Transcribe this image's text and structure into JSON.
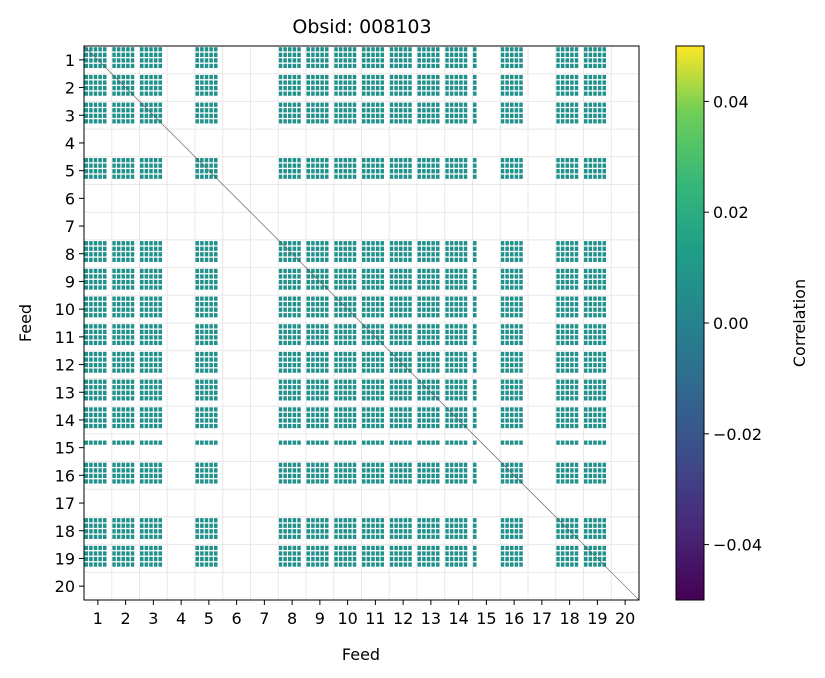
{
  "chart_data": {
    "type": "heatmap",
    "title": "Obsid: 008103",
    "xlabel": "Feed",
    "ylabel": "Feed",
    "categories": [
      "1",
      "2",
      "3",
      "4",
      "5",
      "6",
      "7",
      "8",
      "9",
      "10",
      "11",
      "12",
      "13",
      "14",
      "15",
      "16",
      "17",
      "18",
      "19",
      "20"
    ],
    "colorbar": {
      "label": "Correlation",
      "range": [
        -0.05,
        0.05
      ],
      "ticks": [
        -0.04,
        -0.02,
        0.0,
        0.02,
        0.04
      ],
      "tick_labels": [
        "−0.04",
        "−0.02",
        "0.00",
        "0.02",
        "0.04"
      ],
      "colormap": "viridis"
    },
    "cell_value": 0.0,
    "cell_color": "#21918c",
    "grid": true,
    "active_feeds": [
      1,
      2,
      3,
      5,
      8,
      9,
      10,
      11,
      12,
      13,
      14,
      16,
      18,
      19
    ],
    "partial_feeds": [
      15
    ],
    "inactive_feeds": [
      4,
      6,
      7,
      17,
      20
    ]
  }
}
